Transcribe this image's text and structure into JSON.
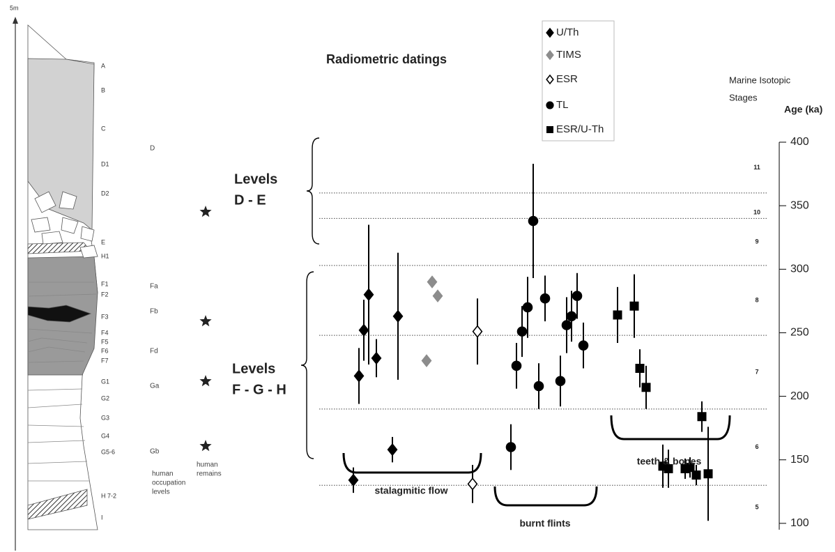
{
  "stratigraphy": {
    "scale_label": "5m",
    "layers": [
      "A",
      "B",
      "C",
      "D1",
      "D2",
      "E",
      "H1",
      "F1",
      "F2",
      "F3",
      "F4",
      "F5",
      "F6",
      "F7",
      "G1",
      "G2",
      "G3",
      "G4",
      "G5-6",
      "H 7-2",
      "I"
    ],
    "occupation_levels": [
      "D",
      "Fa",
      "Fb",
      "Fd",
      "Ga",
      "Gb"
    ],
    "occupation_caption": [
      "human",
      "occupation",
      "levels"
    ],
    "remains_caption": [
      "human",
      "remains"
    ]
  },
  "chart_data": {
    "type": "scatter",
    "title": "Radiometric datings",
    "ylabel": "Age (ka)",
    "ylim": [
      95,
      400
    ],
    "yticks": [
      100,
      150,
      200,
      250,
      300,
      350,
      400
    ],
    "mis": {
      "title": [
        "Marine Isotopic",
        "Stages"
      ],
      "stages": [
        "5",
        "6",
        "7",
        "8",
        "9",
        "10",
        "11"
      ],
      "boundaries": [
        130,
        190,
        248,
        303,
        340,
        360
      ]
    },
    "series": [
      {
        "name": "U/Th",
        "marker": "diamond",
        "color": "#000000",
        "values": [
          134,
          158,
          216,
          252,
          230,
          280,
          263
        ],
        "errors": [
          10,
          10,
          22,
          24,
          15,
          55,
          50
        ]
      },
      {
        "name": "TIMS",
        "marker": "diamond",
        "color": "#8c8c8c",
        "values": [
          228,
          290,
          279
        ]
      },
      {
        "name": "ESR",
        "marker": "diamond",
        "color": "#000000",
        "hollow": true,
        "values": [
          131,
          251
        ],
        "errors": [
          15,
          26
        ]
      },
      {
        "name": "TL",
        "marker": "circle",
        "color": "#000000",
        "values": [
          160,
          224,
          251,
          270,
          208,
          277,
          212,
          256,
          263,
          279,
          240,
          338
        ],
        "errors": [
          18,
          18,
          20,
          24,
          18,
          18,
          20,
          22,
          20,
          18,
          18,
          45
        ]
      },
      {
        "name": "ESR/U-Th",
        "marker": "square",
        "color": "#000000",
        "values": [
          145,
          143,
          143,
          144,
          138,
          139,
          184,
          264,
          271,
          222,
          207
        ],
        "errors": [
          17,
          15,
          8,
          8,
          8,
          37,
          12,
          22,
          25,
          15,
          17
        ]
      }
    ],
    "groups": [
      {
        "label": [
          "Levels",
          "D - E"
        ]
      },
      {
        "label": [
          "Levels",
          "F - G - H"
        ]
      }
    ],
    "annotations": [
      "stalagmitic flow",
      "burnt flints",
      "teeth & bones"
    ]
  }
}
